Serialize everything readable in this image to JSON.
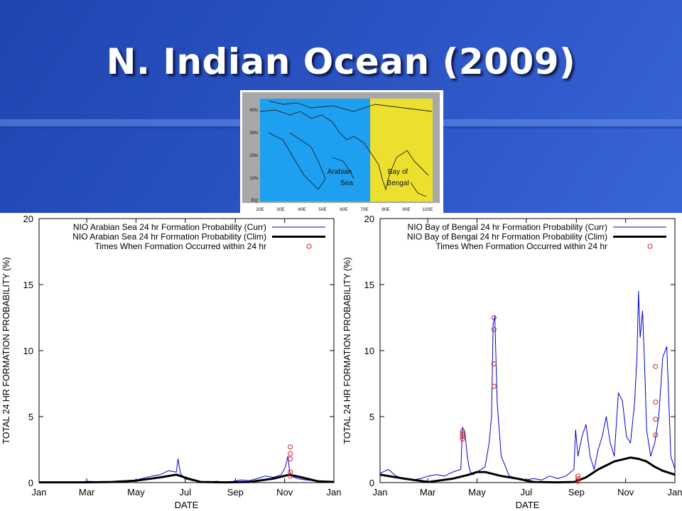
{
  "slide": {
    "title": "N. Indian Ocean (2009)"
  },
  "colors": {
    "accent": "#2b52c0",
    "current_series": "#0000cc",
    "clim_series": "#000000",
    "formation_marker": "#cc2222",
    "arabian_sea_fill": "#1ea0f0",
    "bay_of_bengal_fill": "#ecdf2e"
  },
  "map": {
    "regions": [
      "Arabian Sea",
      "Bay of Bengal"
    ],
    "lat_labels": [
      "40N",
      "30N",
      "20N",
      "10N",
      "EQ"
    ],
    "lon_labels": [
      "20E",
      "30E",
      "40E",
      "50E",
      "60E",
      "70E",
      "80E",
      "90E",
      "100E"
    ]
  },
  "chart_data": [
    {
      "type": "line",
      "xlabel": "DATE",
      "ylabel": "TOTAL 24 HR FORMATION PROBABILITY (%)",
      "xlim": [
        0,
        365
      ],
      "ylim": [
        0,
        20
      ],
      "xticks": [
        0,
        59,
        120,
        181,
        243,
        304,
        365
      ],
      "xtick_labels": [
        "Jan",
        "Mar",
        "May",
        "Jul",
        "Sep",
        "Nov",
        "Jan"
      ],
      "yticks": [
        0,
        5,
        10,
        15,
        20
      ],
      "grid": false,
      "legend_position": "top-right",
      "series": [
        {
          "name": "NIO Arabian Sea 24 hr Formation Probability (Curr)",
          "style": "thin-blue",
          "x": [
            0,
            20,
            40,
            60,
            80,
            100,
            120,
            140,
            150,
            160,
            170,
            172,
            175,
            180,
            190,
            200,
            210,
            220,
            230,
            240,
            250,
            260,
            270,
            280,
            290,
            300,
            305,
            308,
            310,
            312,
            320,
            330,
            340,
            350,
            360,
            365
          ],
          "y": [
            0.02,
            0.05,
            0.02,
            0.1,
            0.05,
            0.1,
            0.2,
            0.5,
            0.6,
            0.9,
            0.8,
            1.8,
            0.7,
            0.3,
            0.15,
            0.1,
            0.05,
            0.1,
            0.05,
            0.1,
            0.2,
            0.15,
            0.3,
            0.5,
            0.4,
            0.6,
            1.2,
            2.0,
            0.9,
            0.5,
            0.3,
            0.2,
            0.15,
            0.1,
            0.05,
            0.05
          ]
        },
        {
          "name": "NIO Arabian Sea 24 hr Formation Probability (Clim)",
          "style": "thick-black",
          "x": [
            0,
            30,
            60,
            90,
            120,
            150,
            170,
            185,
            200,
            230,
            260,
            290,
            310,
            325,
            345,
            365
          ],
          "y": [
            0.02,
            0.02,
            0.02,
            0.05,
            0.15,
            0.4,
            0.6,
            0.3,
            0.05,
            0.02,
            0.05,
            0.3,
            0.6,
            0.4,
            0.1,
            0.05
          ]
        },
        {
          "name": "Times When Formation Occurred within 24 hr",
          "style": "markers",
          "x": [
            311,
            311,
            311,
            311,
            311
          ],
          "y": [
            2.7,
            2.2,
            1.8,
            0.8,
            0.5
          ]
        }
      ]
    },
    {
      "type": "line",
      "xlabel": "DATE",
      "ylabel": "TOTAL 24 HR FORMATION PROBABILITY (%)",
      "xlim": [
        0,
        365
      ],
      "ylim": [
        0,
        20
      ],
      "xticks": [
        0,
        59,
        120,
        181,
        243,
        304,
        365
      ],
      "xtick_labels": [
        "Jan",
        "Mar",
        "May",
        "Jul",
        "Sep",
        "Nov",
        "Jan"
      ],
      "yticks": [
        0,
        5,
        10,
        15,
        20
      ],
      "grid": false,
      "legend_position": "top-right",
      "series": [
        {
          "name": "NIO Bay of Bengal 24 hr Formation Probability (Curr)",
          "style": "thin-blue",
          "x": [
            0,
            10,
            20,
            30,
            40,
            50,
            60,
            70,
            80,
            90,
            100,
            102,
            105,
            108,
            110,
            112,
            115,
            120,
            130,
            135,
            138,
            140,
            142,
            145,
            150,
            160,
            170,
            180,
            190,
            200,
            210,
            220,
            230,
            240,
            242,
            245,
            250,
            255,
            260,
            265,
            270,
            275,
            280,
            285,
            290,
            295,
            300,
            305,
            310,
            315,
            318,
            320,
            322,
            325,
            328,
            330,
            335,
            340,
            345,
            350,
            355,
            360,
            365
          ],
          "y": [
            0.7,
            1.0,
            0.5,
            0.3,
            0.2,
            0.3,
            0.5,
            0.6,
            0.5,
            0.8,
            1.0,
            4.2,
            3.8,
            2.0,
            1.2,
            0.8,
            0.6,
            0.8,
            1.2,
            3.0,
            5.0,
            12.0,
            12.6,
            6.0,
            2.0,
            0.5,
            0.3,
            0.2,
            0.3,
            0.2,
            0.5,
            0.3,
            0.5,
            1.0,
            4.0,
            2.0,
            3.5,
            4.4,
            2.0,
            1.0,
            2.5,
            3.5,
            5.0,
            3.0,
            2.0,
            6.8,
            6.2,
            3.5,
            3.0,
            6.0,
            9.5,
            14.5,
            11.0,
            13.0,
            8.0,
            4.0,
            2.0,
            3.0,
            5.0,
            9.5,
            10.3,
            2.0,
            1.0
          ]
        },
        {
          "name": "NIO Bay of Bengal 24 hr Formation Probability (Clim)",
          "style": "thick-black",
          "x": [
            0,
            30,
            60,
            90,
            110,
            120,
            130,
            150,
            170,
            190,
            220,
            240,
            255,
            270,
            290,
            310,
            320,
            330,
            340,
            350,
            365
          ],
          "y": [
            0.6,
            0.3,
            0.05,
            0.3,
            0.6,
            0.8,
            0.8,
            0.5,
            0.3,
            0.05,
            0.02,
            0.05,
            0.4,
            1.0,
            1.6,
            1.9,
            1.8,
            1.6,
            1.2,
            0.9,
            0.6
          ]
        },
        {
          "name": "Times When Formation Occurred within 24 hr",
          "style": "markers",
          "x": [
            102,
            102,
            102,
            102,
            141,
            141,
            141,
            141,
            245,
            245,
            245,
            341,
            341,
            341,
            341
          ],
          "y": [
            3.9,
            3.7,
            3.5,
            3.3,
            12.5,
            11.6,
            9.0,
            7.3,
            0.5,
            0.3,
            0.1,
            8.8,
            6.1,
            4.8,
            3.6
          ]
        }
      ]
    }
  ]
}
